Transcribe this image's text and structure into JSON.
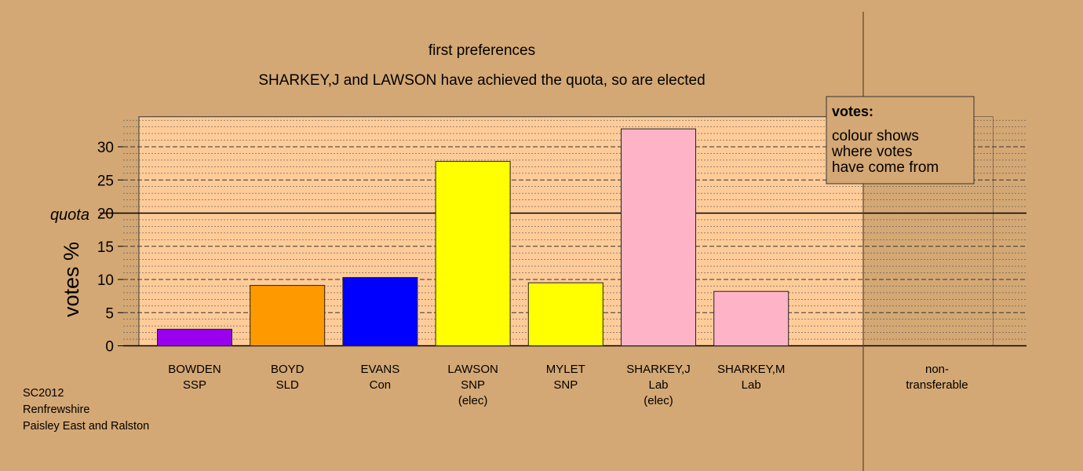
{
  "chart_data": {
    "type": "bar",
    "title": "first preferences",
    "subtitle": "SHARKEY,J and LAWSON have achieved the quota, so are elected",
    "ylabel": "votes %",
    "ylim": [
      0,
      35
    ],
    "yticks": [
      "0",
      "5",
      "10",
      "15",
      "20",
      "25",
      "30"
    ],
    "quota": {
      "label": "quota",
      "value": 20
    },
    "categories": [
      {
        "name": "BOWDEN",
        "party": "SSP",
        "note": ""
      },
      {
        "name": "BOYD",
        "party": "SLD",
        "note": ""
      },
      {
        "name": "EVANS",
        "party": "Con",
        "note": ""
      },
      {
        "name": "LAWSON",
        "party": "SNP",
        "note": "(elec)"
      },
      {
        "name": "MYLET",
        "party": "SNP",
        "note": ""
      },
      {
        "name": "SHARKEY,J",
        "party": "Lab",
        "note": "(elec)"
      },
      {
        "name": "SHARKEY,M",
        "party": "Lab",
        "note": ""
      }
    ],
    "values": [
      2.5,
      9.1,
      10.3,
      27.8,
      9.5,
      32.7,
      8.2
    ],
    "colors": [
      "#9900ee",
      "#ff9900",
      "#0000ff",
      "#ffff00",
      "#ffff00",
      "#ffb3c6",
      "#ffb3c6"
    ],
    "nontransferable": {
      "line1": "non-",
      "line2": "transferable",
      "value": 0
    },
    "legend": {
      "title": "votes:",
      "lines": [
        "colour shows",
        "where votes",
        "have come from"
      ],
      "placement": "top-right"
    },
    "grid": true
  },
  "footer": {
    "line1": "SC2012",
    "line2": "Renfrewshire",
    "line3": "Paisley East and Ralston"
  }
}
